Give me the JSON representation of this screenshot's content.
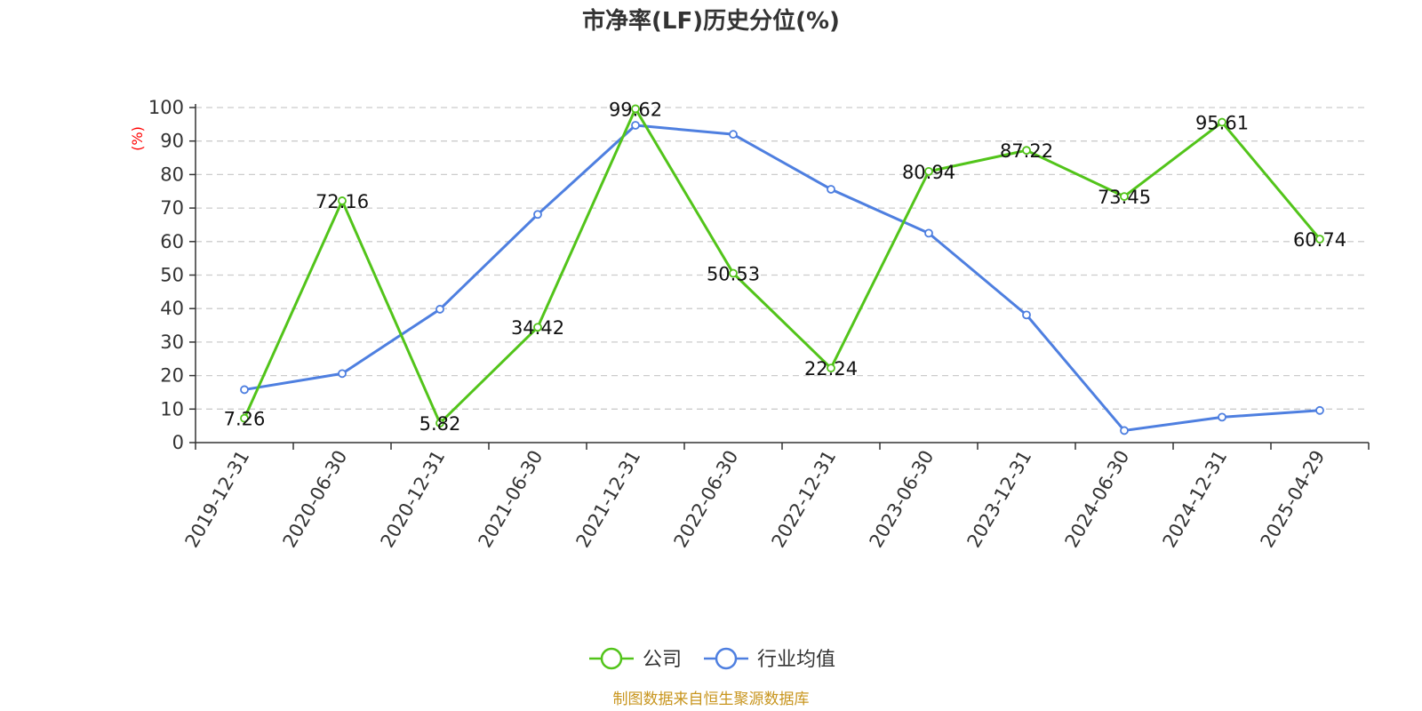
{
  "chart_data": {
    "type": "line",
    "title": "市净率(LF)历史分位(%)",
    "ylabel": "(%)",
    "xlabel": "",
    "categories": [
      "2019-12-31",
      "2020-06-30",
      "2020-12-31",
      "2021-06-30",
      "2021-12-31",
      "2022-06-30",
      "2022-12-31",
      "2023-06-30",
      "2023-12-31",
      "2024-06-30",
      "2024-12-31",
      "2025-04-29"
    ],
    "ylim": [
      0,
      100
    ],
    "yticks": [
      0,
      10,
      20,
      30,
      40,
      50,
      60,
      70,
      80,
      90,
      100
    ],
    "grid": true,
    "legend_position": "bottom-center",
    "series": [
      {
        "name": "公司",
        "color": "#52c41a",
        "values": [
          7.26,
          72.16,
          5.82,
          34.42,
          99.62,
          50.53,
          22.24,
          80.94,
          87.22,
          73.45,
          95.61,
          60.74
        ],
        "labels": [
          "7.26",
          "72.16",
          "5.82",
          "34.42",
          "99.62",
          "50.53",
          "22.24",
          "80.94",
          "87.22",
          "73.45",
          "95.61",
          "60.74"
        ]
      },
      {
        "name": "行业均值",
        "color": "#4e7fe0",
        "values": [
          15.8,
          20.6,
          39.8,
          68.1,
          94.7,
          92.0,
          75.6,
          62.5,
          38.1,
          3.6,
          7.6,
          9.6
        ]
      }
    ]
  },
  "footer": "制图数据来自恒生聚源数据库"
}
